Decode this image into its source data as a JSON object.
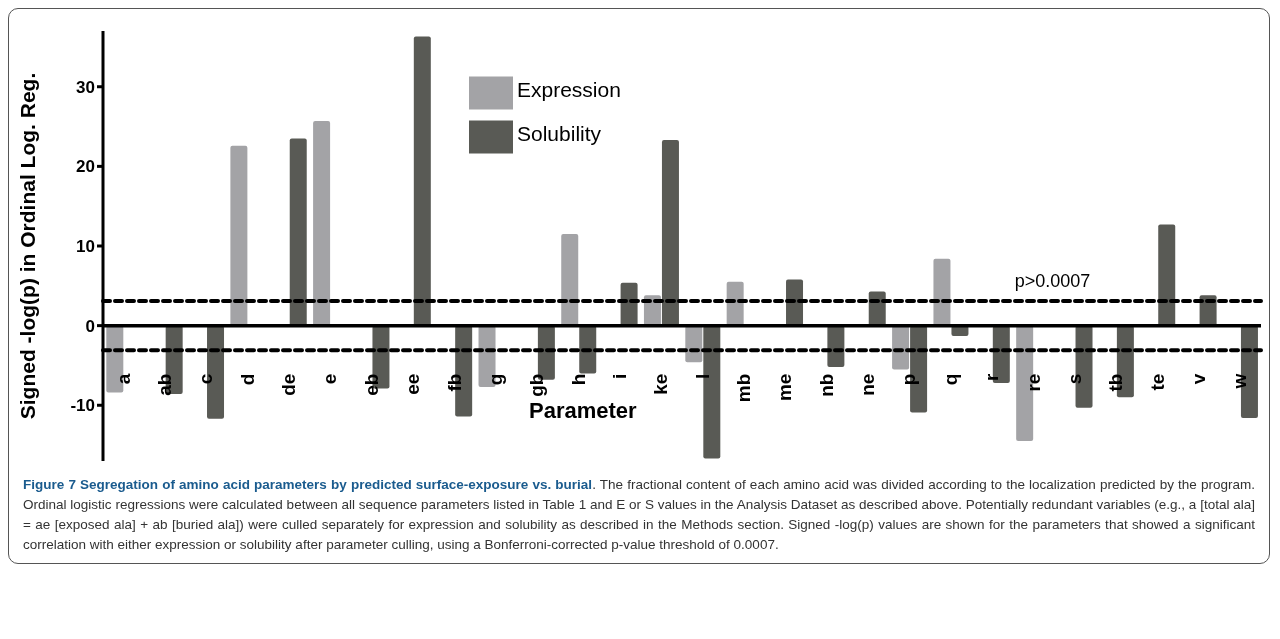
{
  "chart_data": {
    "type": "bar",
    "xlabel": "Parameter",
    "ylabel": "Signed -log(p) in Ordinal Log. Reg.",
    "categories": [
      "a",
      "ab",
      "c",
      "d",
      "de",
      "e",
      "eb",
      "ee",
      "fb",
      "g",
      "gb",
      "h",
      "i",
      "ke",
      "l",
      "mb",
      "me",
      "nb",
      "ne",
      "p",
      "q",
      "r",
      "re",
      "s",
      "tb",
      "te",
      "v",
      "w"
    ],
    "series": [
      {
        "name": "Expression",
        "color": "#a3a3a6",
        "values": [
          -8.4,
          null,
          null,
          22.6,
          null,
          25.7,
          null,
          null,
          null,
          -7.7,
          null,
          11.5,
          null,
          3.8,
          -4.6,
          5.5,
          null,
          null,
          null,
          -5.5,
          8.4,
          null,
          -14.5,
          null,
          null,
          null,
          null,
          null
        ]
      },
      {
        "name": "Solubility",
        "color": "#595a55",
        "values": [
          null,
          -8.6,
          -11.7,
          null,
          23.5,
          null,
          -7.9,
          36.3,
          -11.4,
          null,
          -6.8,
          -6.0,
          5.4,
          23.3,
          -16.7,
          null,
          5.8,
          -5.2,
          4.3,
          -10.9,
          -1.3,
          -7.2,
          null,
          -10.3,
          -9.0,
          12.7,
          3.8,
          -11.6
        ]
      }
    ],
    "ylim": [
      -17,
      37
    ],
    "yticks": [
      -10,
      0,
      10,
      20,
      30
    ],
    "ref_lines": [
      {
        "axis": "y",
        "value": 3.1,
        "label": "p>0.0007",
        "color": "#000000",
        "line_style": "dashed"
      },
      {
        "axis": "y",
        "value": -3.1,
        "color": "#000000",
        "line_style": "dashed"
      }
    ],
    "legend": "top left",
    "grid": false,
    "annotations": [
      "Figure 7 Segregation of amino acid parameters by predicted surface-exposure vs. burial",
      ". The fractional content of each amino acid was divided according to the localization predicted by the program. Ordinal logistic regressions were calculated between all sequence parameters listed in Table 1 and E or S values in the Analysis Dataset as described above. Potentially redundant variables (e.g., a [total ala] = ae [exposed ala] + ab [buried ala]) were culled separately for expression and solubility as described in the Methods section. Signed -log(p) values are shown for the parameters that showed a significant correlation with either expression or solubility after parameter culling, using a Bonferroni-corrected p-value threshold of 0.0007."
    ]
  }
}
